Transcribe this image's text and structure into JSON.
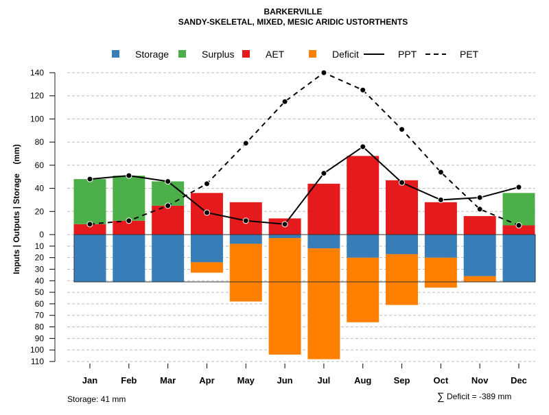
{
  "chart_data": {
    "type": "bar",
    "title": "BARKERVILLE",
    "subtitle": "SANDY-SKELETAL, MIXED, MESIC ARIDIC USTORTHENTS",
    "ylabel": "Inputs | Outputs | Storage    (mm)",
    "xlabel": "",
    "categories": [
      "Jan",
      "Feb",
      "Mar",
      "Apr",
      "May",
      "Jun",
      "Jul",
      "Aug",
      "Sep",
      "Oct",
      "Nov",
      "Dec"
    ],
    "ylim_upper": [
      0,
      140
    ],
    "ylim_lower": [
      0,
      110
    ],
    "yticks_upper": [
      0,
      20,
      40,
      60,
      80,
      100,
      120,
      140
    ],
    "yticks_lower": [
      10,
      20,
      30,
      40,
      50,
      60,
      70,
      80,
      90,
      100,
      110
    ],
    "grid": true,
    "legend_position": "top",
    "legend": [
      {
        "name": "Storage",
        "type": "square",
        "color": "#377EB8"
      },
      {
        "name": "Surplus",
        "type": "square",
        "color": "#4DAF4A"
      },
      {
        "name": "AET",
        "type": "square",
        "color": "#E41A1C"
      },
      {
        "name": "Deficit",
        "type": "square",
        "color": "#FF7F00"
      },
      {
        "name": "PPT",
        "type": "solid-line",
        "color": "#000000"
      },
      {
        "name": "PET",
        "type": "dashed-line",
        "color": "#000000"
      }
    ],
    "series": [
      {
        "name": "AET",
        "values": [
          9,
          12,
          25,
          36,
          28,
          14,
          44,
          68,
          47,
          28,
          16,
          8
        ]
      },
      {
        "name": "Surplus",
        "values": [
          39,
          39,
          21,
          0,
          0,
          0,
          0,
          0,
          0,
          0,
          0,
          28
        ]
      },
      {
        "name": "Storage",
        "values": [
          41,
          41,
          41,
          24,
          8,
          3,
          12,
          20,
          17,
          20,
          36,
          41
        ]
      },
      {
        "name": "Deficit",
        "values": [
          0,
          0,
          0,
          9,
          50,
          101,
          96,
          56,
          44,
          26,
          5,
          0
        ]
      },
      {
        "name": "PPT",
        "values": [
          48,
          51,
          46,
          19,
          12,
          9,
          53,
          76,
          45,
          30,
          32,
          41
        ]
      },
      {
        "name": "PET",
        "values": [
          9,
          12,
          25,
          44,
          79,
          115,
          140,
          125,
          91,
          54,
          22,
          8
        ]
      }
    ],
    "storage_capacity": 41,
    "footer_left": "Storage: 41 mm",
    "footer_right_symbol": "∑",
    "footer_right": "Deficit = -389 mm"
  }
}
